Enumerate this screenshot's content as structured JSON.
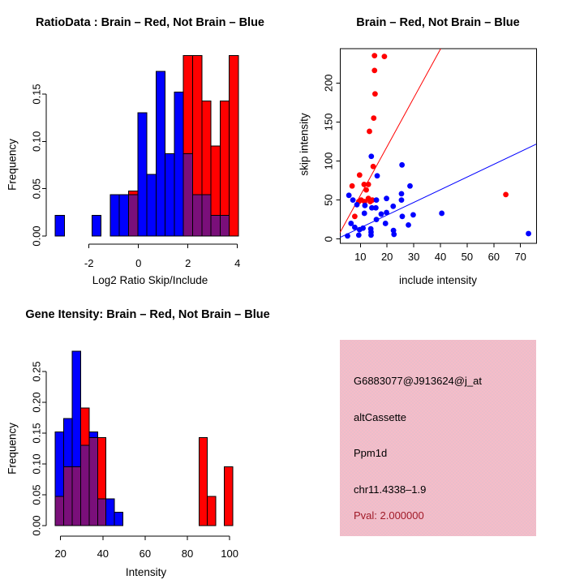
{
  "colors": {
    "red": "#ff0000",
    "blue": "#0000ff",
    "overlap_purple": "#7a0f7a",
    "axis_black": "#000000",
    "info_bg_pink": "#f6bcc8",
    "info_dither_gray": "#c5c6d4",
    "pval_text_red": "#a11a28"
  },
  "chart_data": [
    {
      "id": "ratio_hist",
      "type": "histogram",
      "title": "RatioData : Brain – Red, Not Brain – Blue",
      "xlabel": "Log2 Ratio Skip/Include",
      "ylabel": "Frequency",
      "xticks": [
        -2,
        0,
        2,
        4
      ],
      "xtick_labels": [
        "-2",
        "0",
        "2",
        "4"
      ],
      "yticks": [
        0,
        0.05,
        0.1,
        0.15
      ],
      "ytick_labels": [
        "0.00",
        "0.05",
        "0.10",
        "0.15"
      ],
      "xlim": [
        -3.55,
        4.25
      ],
      "ylim": [
        0,
        0.198
      ],
      "bin_width": 0.37,
      "legend_note": "Brain – Red, Not Brain – Blue (overlap shown purple)",
      "series": [
        {
          "name": "Brain",
          "color_key": "red",
          "bars": [
            [
              -0.4,
              0.0476
            ],
            [
              1.82,
              0.1905
            ],
            [
              2.19,
              0.1905
            ],
            [
              2.56,
              0.1429
            ],
            [
              2.93,
              0.0952
            ],
            [
              3.3,
              0.1429
            ],
            [
              3.67,
              0.1905
            ]
          ]
        },
        {
          "name": "Not Brain",
          "color_key": "blue",
          "bars": [
            [
              -3.36,
              0.0217
            ],
            [
              -1.88,
              0.0217
            ],
            [
              -1.14,
              0.0435
            ],
            [
              -0.77,
              0.0435
            ],
            [
              -0.4,
              0.0435
            ],
            [
              -0.03,
              0.1304
            ],
            [
              0.34,
              0.0652
            ],
            [
              0.71,
              0.1739
            ],
            [
              1.08,
              0.087
            ],
            [
              1.45,
              0.1522
            ],
            [
              1.82,
              0.087
            ],
            [
              2.19,
              0.0435
            ],
            [
              2.56,
              0.0435
            ],
            [
              2.93,
              0.0217
            ],
            [
              3.3,
              0.0217
            ]
          ]
        }
      ]
    },
    {
      "id": "scatter",
      "type": "scatter",
      "title": "Brain – Red, Not Brain – Blue",
      "xlabel": "include intensity",
      "ylabel": "skip intensity",
      "xticks": [
        10,
        20,
        30,
        40,
        50,
        60,
        70
      ],
      "xtick_labels": [
        "10",
        "20",
        "30",
        "40",
        "50",
        "60",
        "70"
      ],
      "yticks": [
        0,
        50,
        100,
        150,
        200
      ],
      "ytick_labels": [
        "0",
        "50",
        "100",
        "150",
        "200"
      ],
      "xlim": [
        2.4,
        76.1
      ],
      "ylim": [
        -5.5,
        244
      ],
      "series": [
        {
          "name": "Brain",
          "color_key": "red",
          "points": [
            [
              15.3,
              235
            ],
            [
              19,
              234
            ],
            [
              15.3,
              216
            ],
            [
              15.5,
              186
            ],
            [
              15,
              155
            ],
            [
              13.4,
              138
            ],
            [
              14.8,
              93
            ],
            [
              9.7,
              82
            ],
            [
              11.4,
              70
            ],
            [
              13,
              70
            ],
            [
              6.9,
              68
            ],
            [
              12.2,
              63
            ],
            [
              13,
              52
            ],
            [
              14.5,
              50
            ],
            [
              10.3,
              50
            ],
            [
              9.4,
              48
            ],
            [
              11.6,
              48
            ],
            [
              13.7,
              48
            ],
            [
              7.9,
              29
            ],
            [
              64.5,
              57
            ]
          ],
          "fit_line": {
            "x1": 2.4,
            "y1": 8.5,
            "x2": 40.1,
            "y2": 244
          }
        },
        {
          "name": "Not Brain",
          "color_key": "blue",
          "points": [
            [
              14.1,
              106
            ],
            [
              25.6,
              95
            ],
            [
              16.3,
              81
            ],
            [
              28.6,
              68
            ],
            [
              5.7,
              56
            ],
            [
              25.4,
              58
            ],
            [
              7.2,
              50
            ],
            [
              16,
              50
            ],
            [
              19.8,
              52
            ],
            [
              25.4,
              50
            ],
            [
              8.7,
              44
            ],
            [
              11.7,
              43
            ],
            [
              14.3,
              40
            ],
            [
              15.8,
              40
            ],
            [
              22.3,
              42
            ],
            [
              11.5,
              33
            ],
            [
              17.8,
              32
            ],
            [
              19.8,
              34
            ],
            [
              29.8,
              31
            ],
            [
              40.5,
              33
            ],
            [
              25.7,
              29
            ],
            [
              16,
              25
            ],
            [
              6.5,
              20
            ],
            [
              19.4,
              20
            ],
            [
              28,
              18
            ],
            [
              7.9,
              15
            ],
            [
              11,
              14
            ],
            [
              9.7,
              12
            ],
            [
              13.9,
              13
            ],
            [
              14,
              9
            ],
            [
              22.4,
              11
            ],
            [
              22.6,
              6
            ],
            [
              9.4,
              5
            ],
            [
              5.2,
              4
            ],
            [
              14,
              5
            ],
            [
              73,
              7
            ]
          ],
          "fit_line": {
            "x1": 2.4,
            "y1": 2.1,
            "x2": 75.9,
            "y2": 121.6
          }
        }
      ]
    },
    {
      "id": "gene_hist",
      "type": "histogram",
      "title": "Gene Itensity: Brain – Red, Not Brain – Blue",
      "xlabel": "Intensity",
      "ylabel": "Frequency",
      "xticks": [
        20,
        40,
        60,
        80,
        100
      ],
      "xtick_labels": [
        "20",
        "40",
        "60",
        "80",
        "100"
      ],
      "yticks": [
        0,
        0.05,
        0.1,
        0.15,
        0.2,
        0.25
      ],
      "ytick_labels": [
        "0.00",
        "0.05",
        "0.10",
        "0.15",
        "0.20",
        "0.25"
      ],
      "xlim": [
        16,
        105
      ],
      "ylim": [
        0,
        0.3
      ],
      "bin_width": 4,
      "legend_note": "Brain – Red, Not Brain – Blue (overlap shown purple)",
      "series": [
        {
          "name": "Brain",
          "color_key": "red",
          "bars": [
            [
              17.5,
              0.0476
            ],
            [
              21.5,
              0.0952
            ],
            [
              25.5,
              0.0952
            ],
            [
              29.5,
              0.1905
            ],
            [
              33.5,
              0.1429
            ],
            [
              37.5,
              0.1429
            ],
            [
              85.5,
              0.1429
            ],
            [
              89.5,
              0.0476
            ],
            [
              97.5,
              0.0952
            ]
          ]
        },
        {
          "name": "Not Brain",
          "color_key": "blue",
          "bars": [
            [
              17.5,
              0.1522
            ],
            [
              21.5,
              0.1739
            ],
            [
              25.5,
              0.2826
            ],
            [
              29.5,
              0.1304
            ],
            [
              33.5,
              0.1522
            ],
            [
              37.5,
              0.0435
            ],
            [
              41.5,
              0.0435
            ],
            [
              45.5,
              0.0217
            ]
          ]
        }
      ]
    }
  ],
  "info_panel": {
    "probe_id": "G6883077@J913624@j_at",
    "splice_type": "altCassette",
    "gene_name": "Ppm1d",
    "locus": "chr11.4338–1.9",
    "pval": "Pval: 2.000000"
  }
}
